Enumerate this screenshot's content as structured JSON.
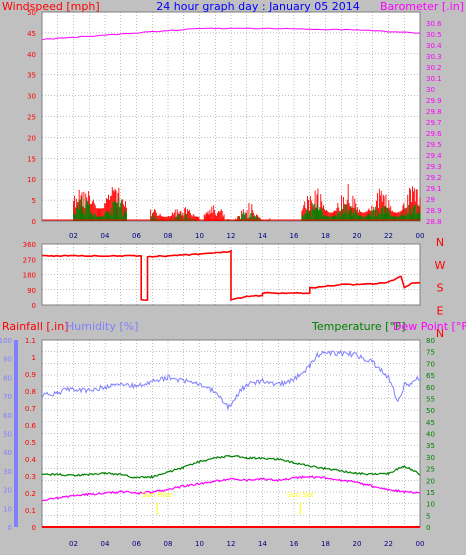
{
  "colors": {
    "panel_bg": "#c0c0c0",
    "plot_bg": "#ffffff",
    "grid": "#808080",
    "wind": "#ff0000",
    "wind_avg": "#008000",
    "barometer": "#ff00ff",
    "direction": "#ff0000",
    "humidity": "#8080ff",
    "temperature": "#008000",
    "dewpoint": "#ff00ff",
    "rainfall": "#ff0000",
    "time_axis": "#000080",
    "sun_marker": "#ffff00"
  },
  "chart_data": [
    {
      "id": "wind-barometer",
      "type": "line",
      "title": "24 hour graph day : January 05 2014",
      "ylabel_left": "Windspeed [mph]",
      "ylabel_right": "Barometer [.in]",
      "ylim_left": [
        0,
        50
      ],
      "yticks_left": [
        "0",
        "5",
        "10",
        "15",
        "20",
        "25",
        "30",
        "35",
        "40",
        "45",
        "50"
      ],
      "ylim_right": [
        28.8,
        30.7
      ],
      "yticks_right": [
        "28.8",
        "28.9",
        "29",
        "29.1",
        "29.2",
        "29.3",
        "29.4",
        "29.5",
        "29.6",
        "29.7",
        "29.8",
        "29.9",
        "30",
        "30.1",
        "30.2",
        "30.3",
        "30.4",
        "30.5",
        "30.6"
      ],
      "xlim_hours": [
        0,
        24
      ],
      "xticks": [
        "02",
        "04",
        "06",
        "08",
        "10",
        "12",
        "14",
        "16",
        "18",
        "20",
        "22",
        "00"
      ],
      "series": [
        {
          "name": "Windspeed",
          "axis": "left",
          "style": "bars",
          "segments": [
            {
              "from": 2.0,
              "to": 5.4,
              "base": 3,
              "peak": 10
            },
            {
              "from": 6.9,
              "to": 10.0,
              "base": 1,
              "peak": 4
            },
            {
              "from": 10.3,
              "to": 11.6,
              "base": 1,
              "peak": 4
            },
            {
              "from": 11.7,
              "to": 14.5,
              "base": 0,
              "peak": 5
            },
            {
              "from": 16.5,
              "to": 24.0,
              "base": 2,
              "peak": 9
            }
          ]
        },
        {
          "name": "Wind average",
          "axis": "left",
          "style": "bars",
          "segments": [
            {
              "from": 2.0,
              "to": 5.4,
              "base": 1,
              "peak": 6
            },
            {
              "from": 6.9,
              "to": 10.0,
              "base": 0,
              "peak": 2
            },
            {
              "from": 11.7,
              "to": 14.5,
              "base": 0,
              "peak": 3
            },
            {
              "from": 16.5,
              "to": 24.0,
              "base": 1,
              "peak": 5
            }
          ]
        },
        {
          "name": "Barometer",
          "axis": "right",
          "x": [
            0,
            2,
            4,
            6,
            8,
            10,
            12,
            14,
            16,
            18,
            20,
            22,
            24
          ],
          "y": [
            30.45,
            30.47,
            30.49,
            30.51,
            30.53,
            30.55,
            30.55,
            30.55,
            30.55,
            30.54,
            30.54,
            30.52,
            30.51
          ]
        }
      ]
    },
    {
      "id": "wind-direction",
      "type": "line",
      "ylim": [
        0,
        360
      ],
      "yticks": [
        "0",
        "90",
        "180",
        "270",
        "360"
      ],
      "compass_labels": [
        "N",
        "W",
        "S",
        "E",
        "N"
      ],
      "xlim_hours": [
        0,
        24
      ],
      "x": [
        0,
        6.3,
        6.3,
        6.7,
        6.7,
        8.0,
        10.0,
        11.8,
        12.0,
        12.0,
        13.0,
        14.0,
        14.0,
        16.0,
        17.0,
        17.0,
        18.0,
        19.0,
        20.0,
        21.0,
        22.0,
        22.8,
        23.0,
        23.5,
        24.0
      ],
      "y": [
        290,
        290,
        30,
        30,
        285,
        290,
        300,
        315,
        320,
        30,
        50,
        55,
        70,
        70,
        70,
        100,
        110,
        120,
        120,
        125,
        135,
        170,
        100,
        130,
        130
      ]
    },
    {
      "id": "weather",
      "type": "line",
      "ylabel_left_1": "Rainfall [.in]",
      "ylabel_left_2": "Humidity [%]",
      "ylabel_right_1": "Temperature [°F]",
      "ylabel_right_2": "Dew Point [°F]",
      "ylim_rain": [
        0,
        1.1
      ],
      "yticks_rain": [
        "0",
        "0.1",
        "0.2",
        "0.3",
        "0.4",
        "0.5",
        "0.6",
        "0.7",
        "0.8",
        "0.9",
        "1",
        "1.1"
      ],
      "ylim_humidity": [
        0,
        100
      ],
      "yticks_humidity": [
        "0",
        "10",
        "20",
        "30",
        "40",
        "50",
        "60",
        "70",
        "80",
        "90",
        "100"
      ],
      "ylim_temp": [
        0,
        80
      ],
      "yticks_temp": [
        "0",
        "5",
        "10",
        "15",
        "20",
        "25",
        "30",
        "35",
        "40",
        "45",
        "50",
        "55",
        "60",
        "65",
        "70",
        "75",
        "80"
      ],
      "xlim_hours": [
        0,
        24
      ],
      "xticks": [
        "02",
        "04",
        "06",
        "08",
        "10",
        "12",
        "14",
        "16",
        "18",
        "20",
        "22",
        "00"
      ],
      "sun_markers": [
        {
          "hour": 7.3,
          "label": "Sun Rise",
          "color": "#ffff00"
        },
        {
          "hour": 16.4,
          "label": "Sun Set",
          "color": "#ffff00"
        }
      ],
      "series": [
        {
          "name": "Humidity",
          "axis": "humidity",
          "x": [
            0,
            1,
            2,
            3,
            4,
            5,
            6,
            7,
            8,
            9,
            10,
            11,
            11.8,
            12.5,
            13,
            14,
            15,
            16,
            17,
            17.5,
            18,
            19,
            20,
            21,
            22,
            22.6,
            23,
            23.5,
            24
          ],
          "y": [
            70,
            72,
            74,
            73,
            75,
            77,
            75,
            78,
            80,
            78,
            77,
            72,
            64,
            72,
            76,
            78,
            76,
            79,
            86,
            92,
            93,
            93,
            92,
            88,
            80,
            67,
            76,
            77,
            80
          ]
        },
        {
          "name": "Temperature",
          "axis": "temp",
          "x": [
            0,
            1,
            2,
            3,
            4,
            5,
            6,
            7,
            8,
            9,
            10,
            11,
            12,
            13,
            14,
            15,
            16,
            17,
            18,
            19,
            20,
            21,
            22,
            23,
            23.5,
            24
          ],
          "y": [
            22.5,
            22.5,
            22.0,
            22.5,
            23.0,
            22.5,
            21.0,
            21.5,
            23.5,
            25.5,
            28.0,
            29.5,
            30.5,
            29.5,
            29.5,
            29.0,
            27.5,
            26.0,
            25.0,
            24.0,
            23.0,
            22.5,
            23.0,
            26.0,
            24.5,
            22.5
          ]
        },
        {
          "name": "Dew Point",
          "axis": "temp",
          "x": [
            0,
            1,
            2,
            3,
            4,
            5,
            6,
            7,
            8,
            9,
            10,
            11,
            12,
            13,
            14,
            15,
            16,
            17,
            18,
            19,
            20,
            21,
            22,
            23,
            24
          ],
          "y": [
            11.5,
            12.5,
            13.5,
            14.0,
            14.5,
            15.0,
            14.5,
            15.0,
            16.0,
            17.5,
            18.5,
            19.5,
            20.5,
            20.0,
            20.5,
            20.0,
            21.0,
            21.5,
            21.0,
            20.0,
            19.0,
            17.5,
            16.0,
            15.0,
            14.5
          ]
        },
        {
          "name": "Rainfall",
          "axis": "rain",
          "x": [
            0,
            24
          ],
          "y": [
            0,
            0
          ]
        }
      ]
    }
  ]
}
